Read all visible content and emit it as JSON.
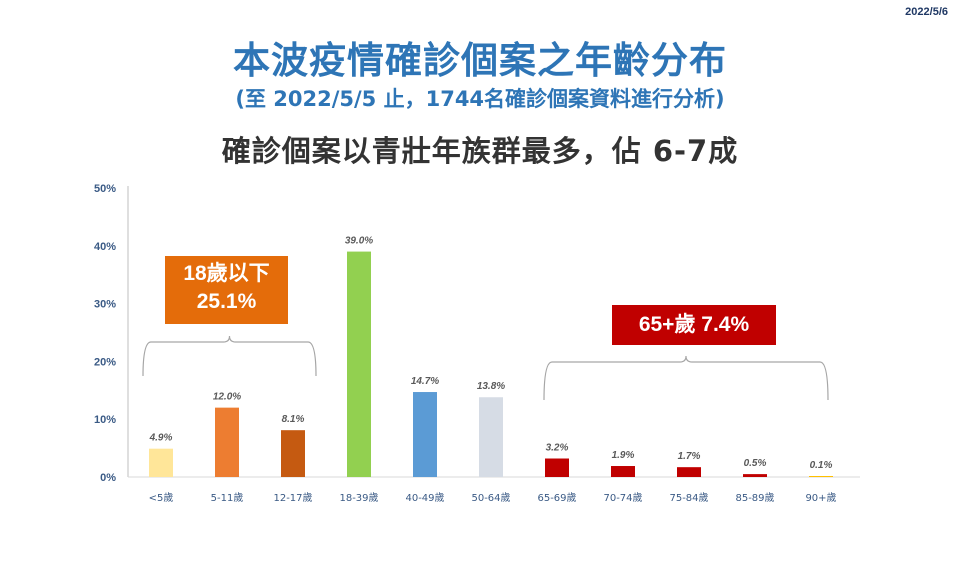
{
  "date": "2022/5/6",
  "title": "本波疫情確診個案之年齡分布",
  "subtitle": "(至 2022/5/5 止，1744名確診個案資料進行分析)",
  "headline": "確診個案以青壯年族群最多，佔 6-7成",
  "callouts": {
    "young_line1": "18歲以下",
    "young_line2": "25.1%",
    "senior": "65+歲 7.4%"
  },
  "colors": {
    "title": "#2e75b6",
    "young_callout": "#e46c0a",
    "senior_callout": "#c00000"
  },
  "chart_data": {
    "type": "bar",
    "categories": [
      "<5歲",
      "5-11歲",
      "12-17歲",
      "18-39歲",
      "40-49歲",
      "50-64歲",
      "65-69歲",
      "70-74歲",
      "75-84歲",
      "85-89歲",
      "90+歲"
    ],
    "values": [
      4.9,
      12.0,
      8.1,
      39.0,
      14.7,
      13.8,
      3.2,
      1.9,
      1.7,
      0.5,
      0.1
    ],
    "data_labels": [
      "4.9%",
      "12.0%",
      "8.1%",
      "39.0%",
      "14.7%",
      "13.8%",
      "3.2%",
      "1.9%",
      "1.7%",
      "0.5%",
      "0.1%"
    ],
    "bar_colors": [
      "#ffe699",
      "#ed7d31",
      "#c55a11",
      "#92d050",
      "#5b9bd5",
      "#d6dce5",
      "#c00000",
      "#c00000",
      "#c00000",
      "#c00000",
      "#ffc000"
    ],
    "ylim": [
      0,
      50
    ],
    "yticks": [
      0,
      10,
      20,
      30,
      40,
      50
    ],
    "ytick_labels": [
      "0%",
      "10%",
      "20%",
      "30%",
      "40%",
      "50%"
    ],
    "grid": false
  }
}
